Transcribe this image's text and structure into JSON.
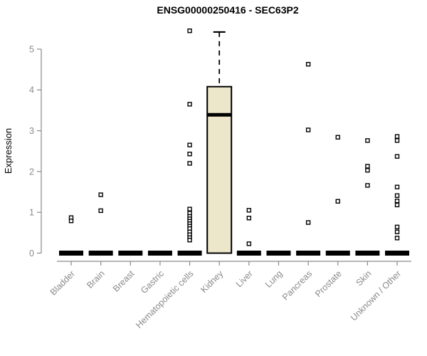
{
  "chart_data": {
    "type": "boxplot",
    "title": "ENSG00000250416 - SEC63P2",
    "xlabel": "",
    "ylabel": "Expression",
    "ylim": [
      0,
      5.5
    ],
    "yticks": [
      0,
      1,
      2,
      3,
      4,
      5
    ],
    "grid": false,
    "legend_position": "none",
    "categories": [
      "Bladder",
      "Brain",
      "Breast",
      "Gastric",
      "Hematopoietic cells",
      "Kidney",
      "Liver",
      "Lung",
      "Pancreas",
      "Prostate",
      "Skin",
      "Unknown / Other"
    ],
    "boxes": [
      {
        "category": "Bladder",
        "whisker_low": 0,
        "q1": 0,
        "median": 0,
        "q3": 0,
        "whisker_high": 0,
        "outliers": [
          0.87,
          0.79
        ]
      },
      {
        "category": "Brain",
        "whisker_low": 0,
        "q1": 0,
        "median": 0,
        "q3": 0,
        "whisker_high": 0,
        "outliers": [
          1.43,
          1.04
        ]
      },
      {
        "category": "Breast",
        "whisker_low": 0,
        "q1": 0,
        "median": 0,
        "q3": 0,
        "whisker_high": 0,
        "outliers": []
      },
      {
        "category": "Gastric",
        "whisker_low": 0,
        "q1": 0,
        "median": 0,
        "q3": 0,
        "whisker_high": 0,
        "outliers": []
      },
      {
        "category": "Hematopoietic cells",
        "whisker_low": 0,
        "q1": 0,
        "median": 0,
        "q3": 0,
        "whisker_high": 0,
        "outliers": [
          5.45,
          3.65,
          2.65,
          2.43,
          2.2,
          1.08,
          0.98,
          0.9,
          0.84,
          0.78,
          0.72,
          0.66,
          0.6,
          0.52,
          0.45,
          0.38,
          0.32
        ]
      },
      {
        "category": "Kidney",
        "whisker_low": 0,
        "q1": 0,
        "median": 3.39,
        "q3": 4.08,
        "whisker_high": 5.42,
        "outliers": []
      },
      {
        "category": "Liver",
        "whisker_low": 0,
        "q1": 0,
        "median": 0,
        "q3": 0,
        "whisker_high": 0,
        "outliers": [
          1.05,
          0.86,
          0.23
        ]
      },
      {
        "category": "Lung",
        "whisker_low": 0,
        "q1": 0,
        "median": 0,
        "q3": 0,
        "whisker_high": 0,
        "outliers": []
      },
      {
        "category": "Pancreas",
        "whisker_low": 0,
        "q1": 0,
        "median": 0,
        "q3": 0,
        "whisker_high": 0,
        "outliers": [
          4.63,
          3.02,
          0.75
        ]
      },
      {
        "category": "Prostate",
        "whisker_low": 0,
        "q1": 0,
        "median": 0,
        "q3": 0,
        "whisker_high": 0,
        "outliers": [
          2.84,
          1.27
        ]
      },
      {
        "category": "Skin",
        "whisker_low": 0,
        "q1": 0,
        "median": 0,
        "q3": 0,
        "whisker_high": 0,
        "outliers": [
          2.76,
          2.13,
          2.03,
          1.66
        ]
      },
      {
        "category": "Unknown / Other",
        "whisker_low": 0,
        "q1": 0,
        "median": 0,
        "q3": 0,
        "whisker_high": 0,
        "outliers": [
          2.86,
          2.76,
          2.37,
          1.62,
          1.41,
          1.28,
          1.18,
          0.64,
          0.52,
          0.37
        ]
      }
    ],
    "colors": {
      "box_fill": "#ECE6CB",
      "box_border": "#000000",
      "median": "#000000",
      "whisker": "#000000",
      "outlier_stroke": "#000000",
      "outlier_fill": "#ffffff",
      "axis": "#8a8a8a",
      "tick_label": "#8a8a8a",
      "title": "#000000",
      "background": "#ffffff"
    }
  }
}
